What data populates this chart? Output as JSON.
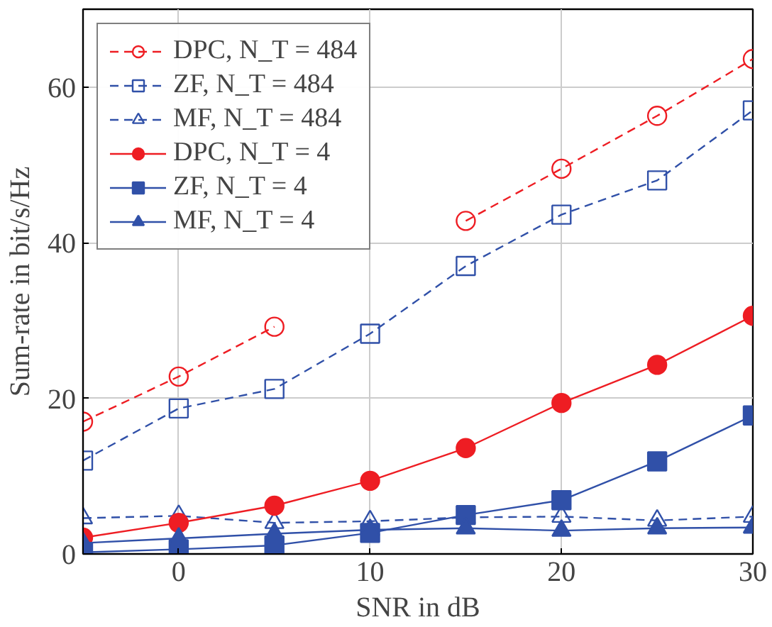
{
  "chart_data": {
    "type": "line",
    "xlabel": "SNR in dB",
    "ylabel": "Sum-rate in bit/s/Hz",
    "x": [
      -5,
      0,
      5,
      10,
      15,
      20,
      25,
      30
    ],
    "xlim": [
      -5,
      30
    ],
    "xticks": [
      {
        "value": -5,
        "label": null
      },
      0,
      10,
      20,
      30
    ],
    "ylim": [
      0,
      70
    ],
    "yticks": [
      0,
      20,
      40,
      60
    ],
    "grid": true,
    "legend": "top left",
    "series": [
      {
        "name": "DPC, N_T = 484",
        "color": "#ee1d23",
        "marker": "circle",
        "line_style": "dashed",
        "values": [
          17,
          22.8,
          29.2,
          null,
          42.8,
          49.5,
          56.3,
          63.6
        ]
      },
      {
        "name": "ZF, N_T = 484",
        "color": "#3050a8",
        "marker": "square",
        "line_style": "dashed",
        "values": [
          12,
          18.7,
          21.2,
          28.3,
          37,
          43.6,
          48,
          57
        ]
      },
      {
        "name": "MF, N_T = 484",
        "color": "#3050a8",
        "marker": "triangle",
        "line_style": "dashed",
        "values": [
          4.6,
          4.9,
          4,
          4.2,
          4.7,
          4.8,
          4.3,
          4.8
        ]
      },
      {
        "name": "DPC, N_T = 4",
        "color": "#ee1d23",
        "marker": "circle",
        "line_style": "solid",
        "values": [
          2.1,
          4,
          6.2,
          9.4,
          13.6,
          19.4,
          24.3,
          30.6
        ]
      },
      {
        "name": "ZF, N_T = 4",
        "color": "#3050a8",
        "marker": "square",
        "line_style": "solid",
        "values": [
          0.2,
          0.6,
          1.1,
          2.7,
          5,
          6.9,
          11.9,
          17.8
        ]
      },
      {
        "name": "MF, N_T = 4",
        "color": "#3050a8",
        "marker": "triangle",
        "line_style": "solid",
        "values": [
          1.4,
          2,
          2.6,
          3.1,
          3.3,
          3,
          3.3,
          3.4
        ]
      }
    ]
  }
}
